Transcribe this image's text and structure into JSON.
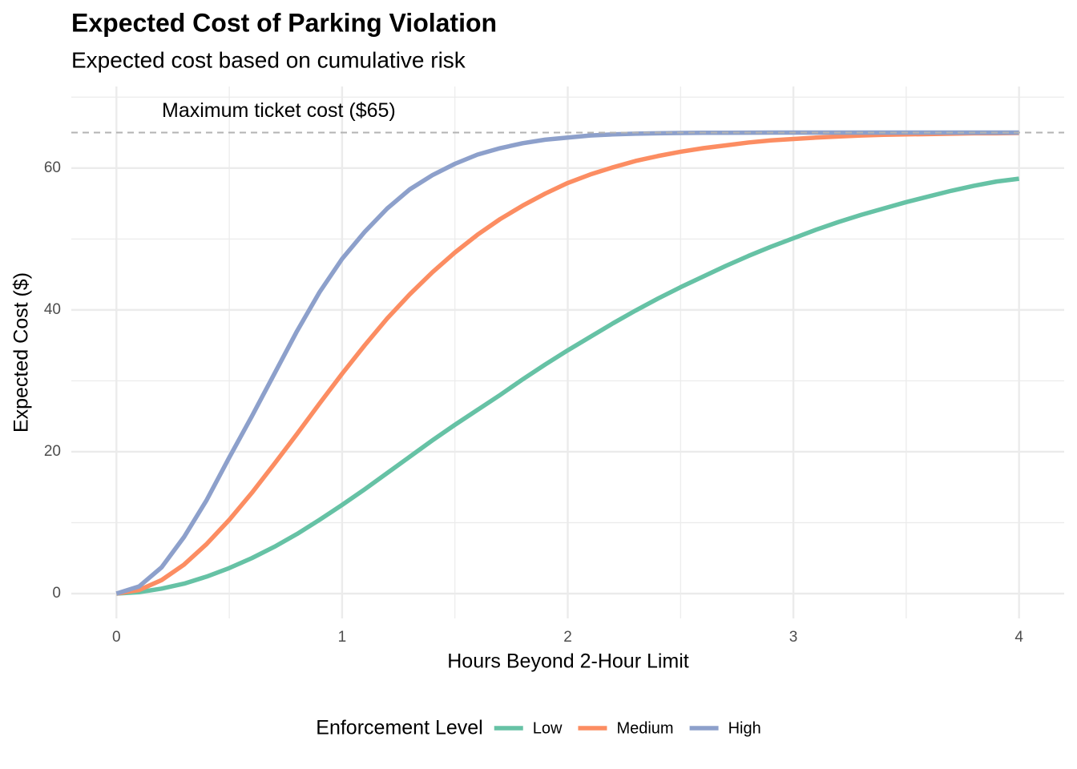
{
  "chart_data": {
    "type": "line",
    "title": "Expected Cost of Parking Violation",
    "subtitle": "Expected cost based on cumulative risk",
    "x_label": "Hours Beyond 2-Hour Limit",
    "y_label": "Expected Cost ($)",
    "legend_title": "Enforcement Level",
    "legend_position": "bottom",
    "grid": true,
    "xlim": [
      -0.2,
      4.2
    ],
    "ylim": [
      -3.5,
      71.5
    ],
    "xticks": [
      0,
      1,
      2,
      3,
      4
    ],
    "yticks": [
      0,
      20,
      40,
      60
    ],
    "reference_line": {
      "value": 65,
      "label": "Maximum ticket cost ($65)",
      "color": "#b3b3b3"
    },
    "x": [
      0,
      0.1,
      0.2,
      0.3,
      0.4,
      0.5,
      0.6,
      0.7,
      0.8,
      0.9,
      1,
      1.1,
      1.2,
      1.3,
      1.4,
      1.5,
      1.6,
      1.7,
      1.8,
      1.9,
      2,
      2.1,
      2.2,
      2.3,
      2.4,
      2.5,
      2.6,
      2.7,
      2.8,
      2.9,
      3,
      3.1,
      3.2,
      3.3,
      3.4,
      3.5,
      3.6,
      3.7,
      3.8,
      3.9,
      4
    ],
    "series": [
      {
        "name": "Low",
        "color": "#66c2a5",
        "values": [
          0,
          0.2,
          0.7,
          1.4,
          2.4,
          3.6,
          5.0,
          6.6,
          8.4,
          10.4,
          12.5,
          14.7,
          17,
          19.3,
          21.6,
          23.8,
          25.9,
          28,
          30.2,
          32.3,
          34.3,
          36.2,
          38.1,
          39.9,
          41.6,
          43.2,
          44.7,
          46.2,
          47.6,
          48.9,
          50.1,
          51.3,
          52.4,
          53.4,
          54.3,
          55.2,
          56.0,
          56.8,
          57.5,
          58.1,
          58.5
        ]
      },
      {
        "name": "Medium",
        "color": "#fc8d62",
        "values": [
          0,
          0.5,
          1.9,
          4.1,
          7,
          10.4,
          14.2,
          18.3,
          22.5,
          26.8,
          31,
          35,
          38.8,
          42.2,
          45.3,
          48.1,
          50.6,
          52.8,
          54.7,
          56.4,
          57.9,
          59.1,
          60.1,
          61,
          61.7,
          62.3,
          62.8,
          63.2,
          63.6,
          63.9,
          64.1,
          64.3,
          64.45,
          64.6,
          64.7,
          64.75,
          64.8,
          64.85,
          64.9,
          64.9,
          64.95
        ]
      },
      {
        "name": "High",
        "color": "#8da0cb",
        "values": [
          0,
          1,
          3.7,
          8,
          13.2,
          19.2,
          25,
          31,
          37,
          42.5,
          47.2,
          51,
          54.3,
          57,
          59,
          60.6,
          61.9,
          62.8,
          63.5,
          64,
          64.3,
          64.6,
          64.75,
          64.85,
          64.9,
          64.95,
          64.97,
          64.98,
          64.99,
          65,
          65,
          65,
          65,
          65,
          65,
          65,
          65,
          65,
          65,
          65,
          65
        ]
      }
    ]
  }
}
